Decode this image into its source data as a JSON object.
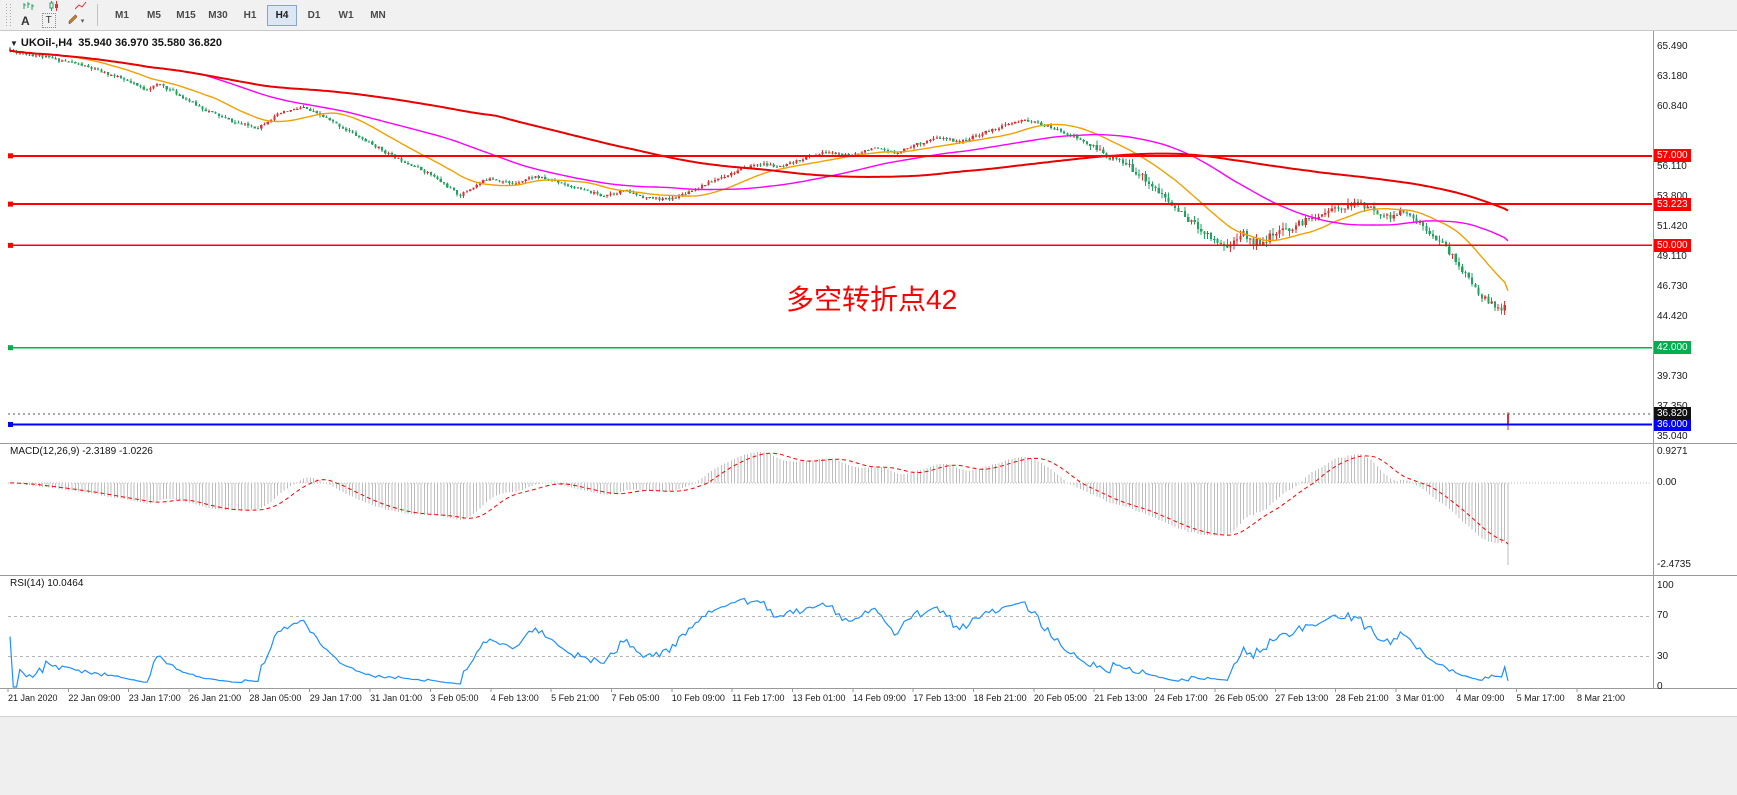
{
  "toolbar": {
    "text_buttons": [
      {
        "label": "A"
      },
      {
        "label": "T"
      }
    ],
    "timeframes": [
      "M1",
      "M5",
      "M15",
      "M30",
      "H1",
      "H4",
      "D1",
      "W1",
      "MN"
    ],
    "active_timeframe": "H4"
  },
  "main_chart": {
    "title": "UKOil-,H4",
    "ohlc_text": "35.940 36.970 35.580 36.820",
    "annotation": {
      "text": "多空转折点42",
      "color": "#ff0000"
    }
  },
  "chart_data": {
    "type": "candlestick",
    "symbol": "UKOil-",
    "timeframe": "H4",
    "last_ohlc": {
      "open": 35.94,
      "high": 36.97,
      "low": 35.58,
      "close": 36.82
    },
    "price_axis": {
      "ylim": [
        34.55,
        66.6
      ],
      "ticks": [
        "65.490",
        "63.180",
        "60.840",
        "56.110",
        "53.800",
        "51.420",
        "49.110",
        "46.730",
        "44.420",
        "39.730",
        "37.350",
        "35.040"
      ]
    },
    "levels": [
      {
        "price": 57.0,
        "label": "57.000",
        "color": "#ff0000",
        "width": 2
      },
      {
        "price": 53.223,
        "label": "53.223",
        "color": "#ff0000",
        "width": 2
      },
      {
        "price": 50.0,
        "label": "50.000",
        "color": "#ff0000",
        "width": 1.5
      },
      {
        "price": 42.0,
        "label": "42.000",
        "color": "#00b050",
        "width": 1.5
      },
      {
        "price": 36.0,
        "label": "36.000",
        "color": "#0000ff",
        "width": 2
      }
    ],
    "current_price": {
      "value": 36.82,
      "label": "36.820"
    },
    "colors": {
      "bull": "#e03131",
      "bear": "#1fa35d"
    },
    "candles": {
      "count": 460,
      "seed": 11,
      "noise_zones": [
        {
          "upto": 0.72,
          "amp": 0.2
        },
        {
          "upto": 0.8,
          "amp": 0.45
        },
        {
          "upto": 0.86,
          "amp": 0.55
        },
        {
          "upto": 2,
          "amp": 0.4
        }
      ],
      "anchors": [
        [
          0,
          65.2
        ],
        [
          0.02,
          64.8
        ],
        [
          0.045,
          64.2
        ],
        [
          0.06,
          63.6
        ],
        [
          0.075,
          63.0
        ],
        [
          0.09,
          62.2
        ],
        [
          0.1,
          62.6
        ],
        [
          0.115,
          61.6
        ],
        [
          0.13,
          60.6
        ],
        [
          0.15,
          59.6
        ],
        [
          0.165,
          59.2
        ],
        [
          0.18,
          60.3
        ],
        [
          0.195,
          60.8
        ],
        [
          0.21,
          60.0
        ],
        [
          0.225,
          59.0
        ],
        [
          0.24,
          58.0
        ],
        [
          0.255,
          57.0
        ],
        [
          0.268,
          56.3
        ],
        [
          0.28,
          55.6
        ],
        [
          0.292,
          54.6
        ],
        [
          0.3,
          53.9
        ],
        [
          0.31,
          54.6
        ],
        [
          0.32,
          55.3
        ],
        [
          0.335,
          54.8
        ],
        [
          0.35,
          55.4
        ],
        [
          0.365,
          55.0
        ],
        [
          0.38,
          54.4
        ],
        [
          0.395,
          53.9
        ],
        [
          0.41,
          54.3
        ],
        [
          0.425,
          53.7
        ],
        [
          0.44,
          53.6
        ],
        [
          0.455,
          54.3
        ],
        [
          0.47,
          55.1
        ],
        [
          0.485,
          55.8
        ],
        [
          0.5,
          56.4
        ],
        [
          0.515,
          56.1
        ],
        [
          0.53,
          56.8
        ],
        [
          0.545,
          57.3
        ],
        [
          0.56,
          57.0
        ],
        [
          0.575,
          57.6
        ],
        [
          0.59,
          57.2
        ],
        [
          0.605,
          57.9
        ],
        [
          0.62,
          58.4
        ],
        [
          0.635,
          58.1
        ],
        [
          0.65,
          58.8
        ],
        [
          0.665,
          59.4
        ],
        [
          0.678,
          59.8
        ],
        [
          0.69,
          59.4
        ],
        [
          0.7,
          59.0
        ],
        [
          0.712,
          58.4
        ],
        [
          0.724,
          57.6
        ],
        [
          0.736,
          56.8
        ],
        [
          0.748,
          56.1
        ],
        [
          0.758,
          55.2
        ],
        [
          0.768,
          54.0
        ],
        [
          0.778,
          52.9
        ],
        [
          0.788,
          51.9
        ],
        [
          0.798,
          51.0
        ],
        [
          0.806,
          50.3
        ],
        [
          0.814,
          49.9
        ],
        [
          0.822,
          51.0
        ],
        [
          0.83,
          50.2
        ],
        [
          0.84,
          50.6
        ],
        [
          0.852,
          51.2
        ],
        [
          0.864,
          51.9
        ],
        [
          0.876,
          52.5
        ],
        [
          0.888,
          53.0
        ],
        [
          0.9,
          53.3
        ],
        [
          0.91,
          52.8
        ],
        [
          0.92,
          52.2
        ],
        [
          0.93,
          52.6
        ],
        [
          0.938,
          52.0
        ],
        [
          0.946,
          51.3
        ],
        [
          0.953,
          50.5
        ],
        [
          0.96,
          49.6
        ],
        [
          0.967,
          48.5
        ],
        [
          0.974,
          47.3
        ],
        [
          0.981,
          46.2
        ],
        [
          0.988,
          45.5
        ],
        [
          0.994,
          44.9
        ],
        [
          0.998,
          45.3
        ],
        [
          1,
          36.82
        ]
      ]
    },
    "moving_averages": [
      {
        "period": 20,
        "color": "#f2a000",
        "width": 1.4
      },
      {
        "period": 60,
        "color": "#ff00ff",
        "width": 1.4
      },
      {
        "period": 150,
        "color": "#e80000",
        "width": 2
      }
    ],
    "macd": {
      "label": "MACD(12,26,9) -2.3189 -1.0226",
      "fast": 12,
      "slow": 26,
      "signal": 9,
      "scale": {
        "top": 0.9271,
        "bottom": -2.4735
      },
      "axis_labels": [
        {
          "text": "0.9271",
          "value": 0.9271
        },
        {
          "text": "0.00",
          "value": 0
        },
        {
          "text": "-2.4735",
          "value": -2.4735
        }
      ],
      "histogram_color": "#bdbdbd",
      "signal_color": "#ff0000"
    },
    "rsi": {
      "label": "RSI(14) 10.0464",
      "period": 14,
      "current": 10.0464,
      "levels": [
        70,
        30
      ],
      "axis_labels": [
        {
          "text": "100",
          "value": 100
        },
        {
          "text": "70",
          "value": 70
        },
        {
          "text": "30",
          "value": 30
        },
        {
          "text": "0",
          "value": 0
        }
      ],
      "color": "#1e90ff"
    },
    "time_labels": [
      "21 Jan 2020",
      "22 Jan 09:00",
      "23 Jan 17:00",
      "26 Jan 21:00",
      "28 Jan 05:00",
      "29 Jan 17:00",
      "31 Jan 01:00",
      "3 Feb 05:00",
      "4 Feb 13:00",
      "5 Feb 21:00",
      "7 Feb 05:00",
      "10 Feb 09:00",
      "11 Feb 17:00",
      "13 Feb 01:00",
      "14 Feb 09:00",
      "17 Feb 13:00",
      "18 Feb 21:00",
      "20 Feb 05:00",
      "21 Feb 13:00",
      "24 Feb 17:00",
      "26 Feb 05:00",
      "27 Feb 13:00",
      "28 Feb 21:00",
      "3 Mar 01:00",
      "4 Mar 09:00",
      "5 Mar 17:00",
      "8 Mar 21:00"
    ]
  }
}
